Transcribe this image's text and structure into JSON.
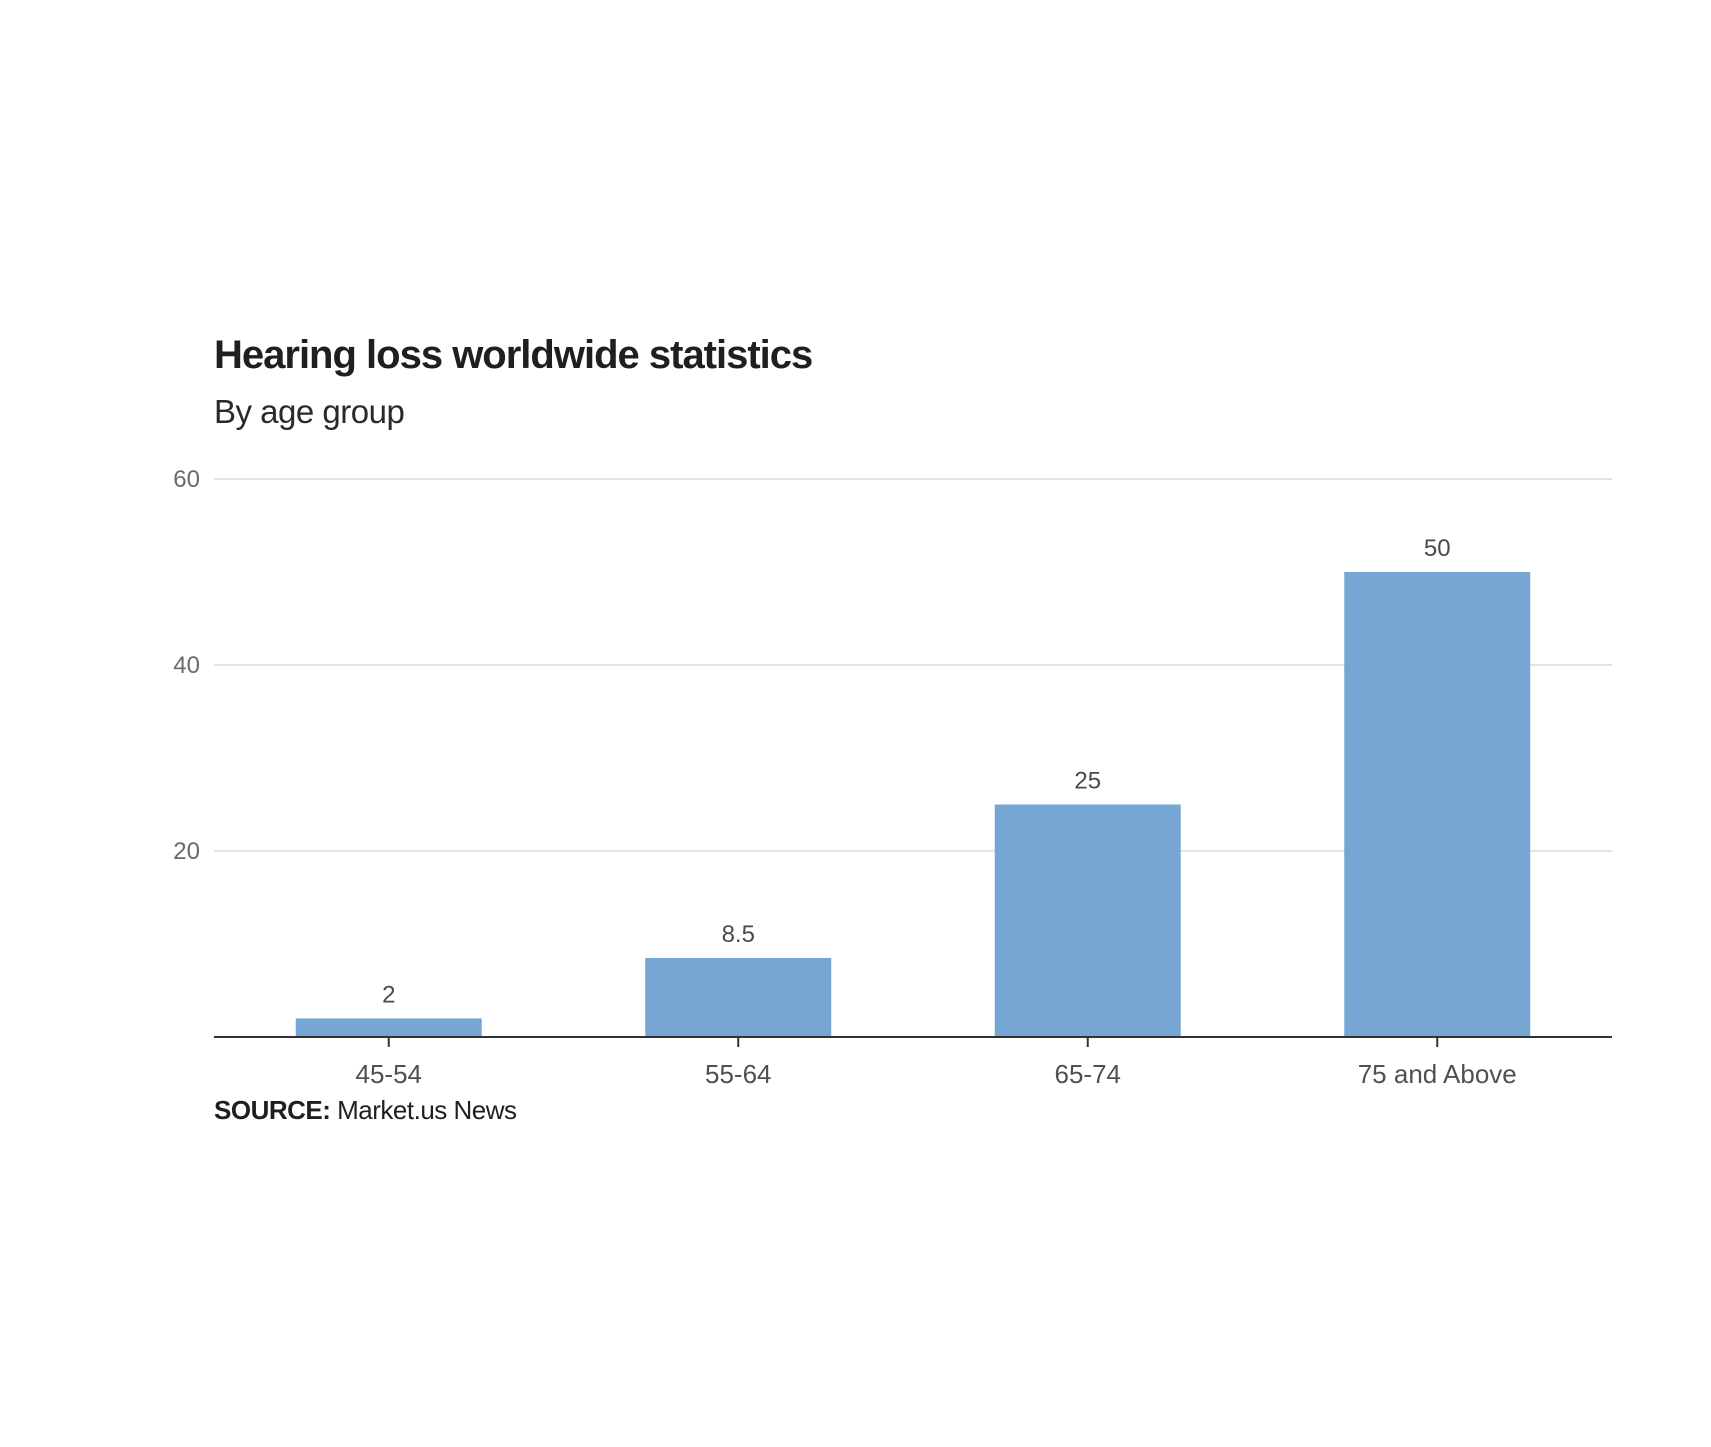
{
  "chart_data": {
    "type": "bar",
    "title": "Hearing loss worldwide statistics",
    "subtitle": "By age group",
    "categories": [
      "45-54",
      "55-64",
      "65-74",
      "75 and Above"
    ],
    "values": [
      2,
      8.5,
      25,
      50
    ],
    "data_labels": [
      "2",
      "8.5",
      "25",
      "50"
    ],
    "ylim": [
      0,
      60
    ],
    "yticks": [
      20,
      40,
      60
    ],
    "ytick_labels": [
      "20",
      "40",
      "60"
    ],
    "xlabel": "",
    "ylabel": "",
    "grid": true,
    "bar_color": "#76a7d4",
    "source_label": "SOURCE:",
    "source_text": "Market.us News"
  }
}
